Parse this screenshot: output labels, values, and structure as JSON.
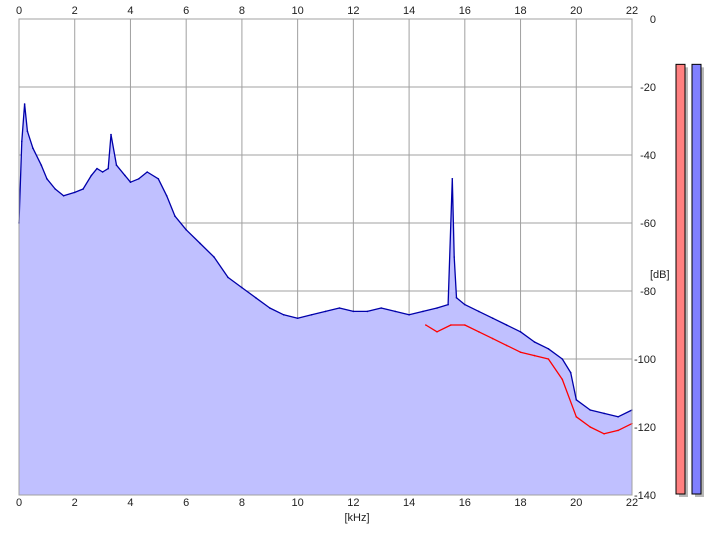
{
  "chart_data": {
    "type": "area",
    "title": "",
    "xlabel": "[kHz]",
    "ylabel": "[dB]",
    "xlim": [
      0,
      22
    ],
    "ylim": [
      -140,
      0
    ],
    "x_ticks": [
      0,
      2,
      4,
      6,
      8,
      10,
      12,
      14,
      16,
      18,
      20,
      22
    ],
    "y_ticks": [
      0,
      -20,
      -40,
      -60,
      -80,
      -100,
      -120,
      -140
    ],
    "x_tick_labels": [
      "0",
      "2",
      "4",
      "6",
      "8",
      "10",
      "12",
      "14",
      "16",
      "18",
      "20",
      "22"
    ],
    "y_tick_labels": [
      "0",
      "-20",
      "-40",
      "-60",
      "-80",
      "-100",
      "-120",
      "-140"
    ],
    "grid": true,
    "series": [
      {
        "color": "#0000aa",
        "fill": "#c0c0ff",
        "x": [
          0.0,
          0.1,
          0.2,
          0.3,
          0.5,
          0.8,
          1.0,
          1.3,
          1.6,
          2.0,
          2.3,
          2.6,
          2.8,
          3.0,
          3.2,
          3.3,
          3.5,
          3.8,
          4.0,
          4.3,
          4.6,
          5.0,
          5.3,
          5.6,
          6.0,
          6.5,
          7.0,
          7.5,
          8.0,
          8.5,
          9.0,
          9.5,
          10.0,
          10.5,
          11.0,
          11.5,
          12.0,
          12.5,
          13.0,
          13.5,
          14.0,
          14.5,
          15.0,
          15.4,
          15.55,
          15.62,
          15.7,
          16.0,
          16.5,
          17.0,
          17.5,
          18.0,
          18.5,
          19.0,
          19.5,
          19.8,
          20.0,
          20.5,
          21.0,
          21.5,
          22.0
        ],
        "y": [
          -60,
          -36,
          -25,
          -33,
          -38,
          -43,
          -47,
          -50,
          -52,
          -51,
          -50,
          -46,
          -44,
          -45,
          -44,
          -34,
          -43,
          -46,
          -48,
          -47,
          -45,
          -47,
          -52,
          -58,
          -62,
          -66,
          -70,
          -76,
          -79,
          -82,
          -85,
          -87,
          -88,
          -87,
          -86,
          -85,
          -86,
          -86,
          -85,
          -86,
          -87,
          -86,
          -85,
          -84,
          -47,
          -70,
          -82,
          -84,
          -86,
          -88,
          -90,
          -92,
          -95,
          -97,
          -100,
          -104,
          -112,
          -115,
          -116,
          -117,
          -115
        ]
      },
      {
        "color": "#ff0000",
        "x": [
          14.6,
          15.0,
          15.5,
          16.0,
          16.5,
          17.0,
          17.5,
          18.0,
          18.5,
          19.0,
          19.5,
          20.0,
          20.5,
          21.0,
          21.5,
          22.0
        ],
        "y": [
          -90,
          -92,
          -90,
          -90,
          -92,
          -94,
          -96,
          -98,
          -99,
          -100,
          -106,
          -117,
          -120,
          -122,
          -121,
          -119
        ]
      }
    ],
    "meters": [
      {
        "color": "#ff8080",
        "level": 0.99
      },
      {
        "color": "#8080ff",
        "level": 0.99
      }
    ]
  }
}
